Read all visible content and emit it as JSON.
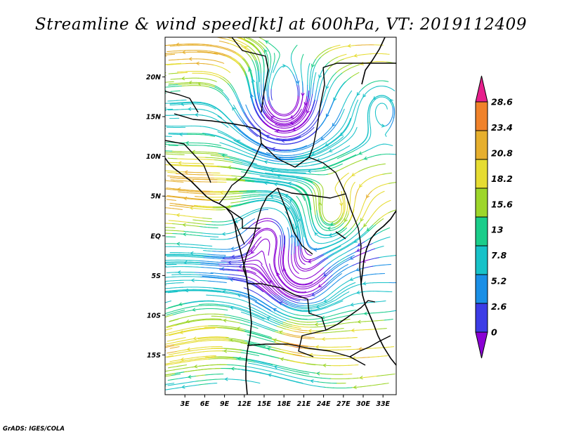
{
  "title": "Streamline & wind speed[kt] at 600hPa, VT: 2019112409",
  "credit": "GrADS: IGES/COLA",
  "map": {
    "lon_range": [
      0,
      35
    ],
    "lat_range": [
      -20,
      25
    ],
    "x_ticks": [
      {
        "lon": 3,
        "label": "3E"
      },
      {
        "lon": 6,
        "label": "6E"
      },
      {
        "lon": 9,
        "label": "9E"
      },
      {
        "lon": 12,
        "label": "12E"
      },
      {
        "lon": 15,
        "label": "15E"
      },
      {
        "lon": 18,
        "label": "18E"
      },
      {
        "lon": 21,
        "label": "21E"
      },
      {
        "lon": 24,
        "label": "24E"
      },
      {
        "lon": 27,
        "label": "27E"
      },
      {
        "lon": 30,
        "label": "30E"
      },
      {
        "lon": 33,
        "label": "33E"
      }
    ],
    "y_ticks": [
      {
        "lat": 20,
        "label": "20N"
      },
      {
        "lat": 15,
        "label": "15N"
      },
      {
        "lat": 10,
        "label": "10N"
      },
      {
        "lat": 5,
        "label": "5N"
      },
      {
        "lat": 0,
        "label": "EQ"
      },
      {
        "lat": -5,
        "label": "5S"
      },
      {
        "lat": -10,
        "label": "10S"
      },
      {
        "lat": -15,
        "label": "15S"
      }
    ]
  },
  "colorbar": {
    "labels": [
      "0",
      "2.6",
      "5.2",
      "7.8",
      "13",
      "15.6",
      "18.2",
      "20.8",
      "23.4",
      "28.6"
    ],
    "colors": [
      "#8a00d4",
      "#3c3ce6",
      "#1a8fe6",
      "#17c2c8",
      "#1acd8a",
      "#9dd62a",
      "#e6dc32",
      "#e6af2d",
      "#f0822a",
      "#e61f8c"
    ]
  },
  "chart_data": {
    "type": "streamline-map",
    "title": "Streamline & wind speed[kt] at 600hPa, VT: 2019112409",
    "variable": "wind speed",
    "units": "kt",
    "level": "600hPa",
    "valid_time": "2019112409",
    "projection": "lat-lon",
    "lon_range": [
      0,
      35
    ],
    "lat_range": [
      -20,
      25
    ],
    "colorbar_levels": [
      0,
      2.6,
      5.2,
      7.8,
      13,
      15.6,
      18.2,
      20.8,
      23.4,
      28.6
    ],
    "features": [
      {
        "lon": 18,
        "lat": 16,
        "description": "anticyclonic gyre"
      },
      {
        "lon": 21,
        "lat": -5,
        "description": "anticyclonic gyre"
      },
      {
        "lon": 25,
        "lat": 2,
        "description": "anticyclonic gyre"
      },
      {
        "lon": 20,
        "lat": -13,
        "description": "wind speed maximum"
      }
    ]
  }
}
